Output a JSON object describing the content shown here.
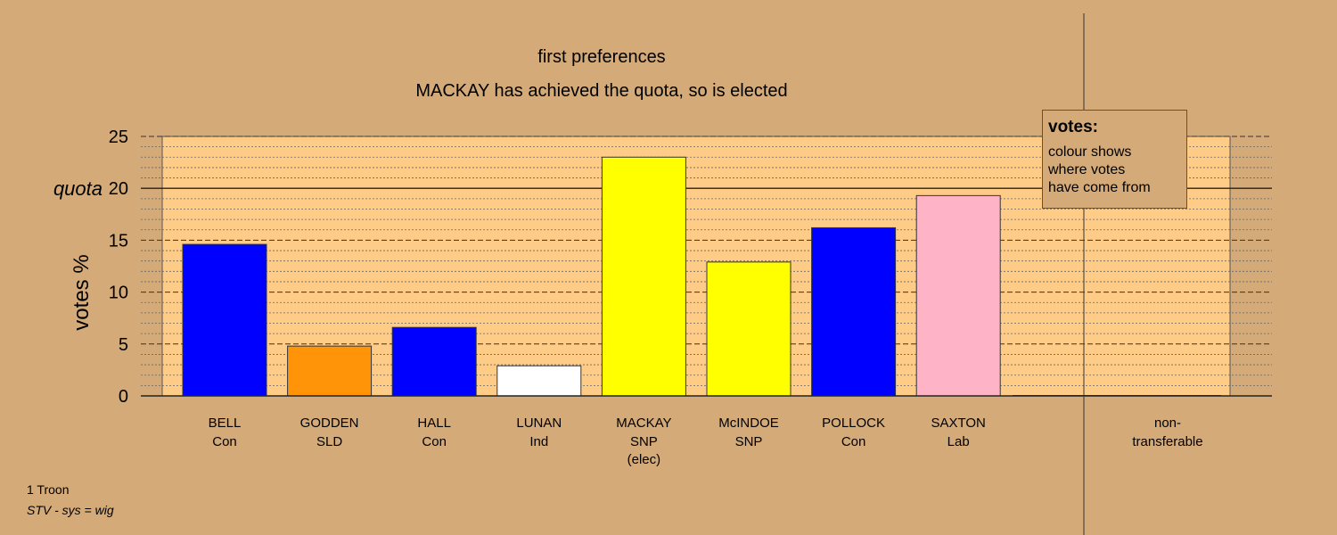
{
  "chart_data": {
    "type": "bar",
    "title": "first preferences",
    "subtitle": "MACKAY has achieved the quota, so is elected",
    "ylabel": "votes %",
    "quota_label": "quota",
    "quota": 20,
    "ylim": [
      0,
      25
    ],
    "yticks": [
      0,
      5,
      10,
      15,
      20,
      25
    ],
    "grid": true,
    "categories": [
      {
        "name": "BELL",
        "party": "Con",
        "note": "",
        "value": 14.6,
        "color": "#0000ff"
      },
      {
        "name": "GODDEN",
        "party": "SLD",
        "note": "",
        "value": 4.8,
        "color": "#ff9408"
      },
      {
        "name": "HALL",
        "party": "Con",
        "note": "",
        "value": 6.6,
        "color": "#0000ff"
      },
      {
        "name": "LUNAN",
        "party": "Ind",
        "note": "",
        "value": 2.9,
        "color": "#ffffff"
      },
      {
        "name": "MACKAY",
        "party": "SNP",
        "note": "(elec)",
        "value": 23.0,
        "color": "#ffff00"
      },
      {
        "name": "McINDOE",
        "party": "SNP",
        "note": "",
        "value": 12.9,
        "color": "#ffff00"
      },
      {
        "name": "POLLOCK",
        "party": "Con",
        "note": "",
        "value": 16.2,
        "color": "#0000ff"
      },
      {
        "name": "SAXTON",
        "party": "Lab",
        "note": "",
        "value": 19.3,
        "color": "#ffb3c6"
      }
    ],
    "nontransferable": {
      "line1": "non-",
      "line2": "transferable",
      "value": 0
    }
  },
  "legend": {
    "title": "votes:",
    "lines": [
      "colour shows",
      "where votes",
      "have come from"
    ]
  },
  "footer": {
    "constituency": "1 Troon",
    "system": "STV - sys = wig"
  },
  "colors": {
    "background": "#d4aa78",
    "plot_area": "#ffcc88"
  }
}
